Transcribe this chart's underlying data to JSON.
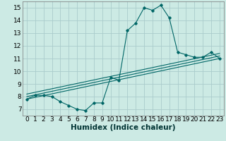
{
  "xlabel": "Humidex (Indice chaleur)",
  "ylabel": "",
  "bg_color": "#cceae4",
  "grid_color": "#aacccc",
  "line_color": "#006666",
  "xlim": [
    -0.5,
    23.5
  ],
  "ylim": [
    6.5,
    15.5
  ],
  "xticks": [
    0,
    1,
    2,
    3,
    4,
    5,
    6,
    7,
    8,
    9,
    10,
    11,
    12,
    13,
    14,
    15,
    16,
    17,
    18,
    19,
    20,
    21,
    22,
    23
  ],
  "yticks": [
    7,
    8,
    9,
    10,
    11,
    12,
    13,
    14,
    15
  ],
  "line1_x": [
    0,
    1,
    2,
    3,
    4,
    5,
    6,
    7,
    8,
    9,
    10,
    11,
    12,
    13,
    14,
    15,
    16,
    17,
    18,
    19,
    20,
    21,
    22,
    23
  ],
  "line1_y": [
    7.8,
    8.1,
    8.1,
    8.0,
    7.6,
    7.3,
    7.0,
    6.9,
    7.5,
    7.5,
    9.5,
    9.3,
    13.2,
    13.8,
    15.0,
    14.8,
    15.2,
    14.2,
    11.5,
    11.3,
    11.1,
    11.1,
    11.5,
    11.0
  ],
  "line2_x": [
    0,
    23
  ],
  "line2_y": [
    8.0,
    11.2
  ],
  "line3_x": [
    0,
    23
  ],
  "line3_y": [
    7.8,
    11.0
  ],
  "line4_x": [
    0,
    23
  ],
  "line4_y": [
    8.2,
    11.4
  ],
  "xlabel_fontsize": 7.5,
  "tick_fontsize": 6.5
}
